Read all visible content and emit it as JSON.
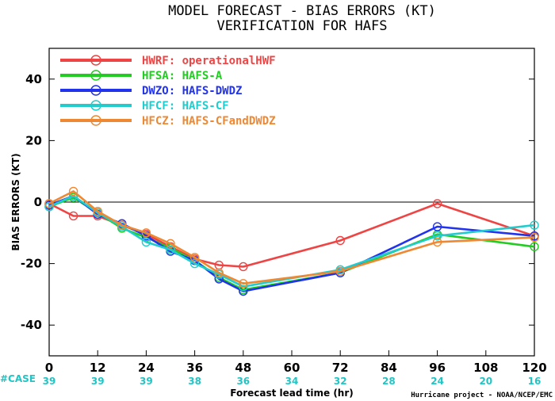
{
  "chart_data": {
    "type": "line",
    "title": "MODEL FORECAST - BIAS ERRORS (KT)",
    "subtitle": "VERIFICATION FOR HAFS",
    "xlabel": "Forecast lead time (hr)",
    "ylabel": "BIAS ERRORS (KT)",
    "xlim": [
      0,
      120
    ],
    "ylim": [
      -50,
      50
    ],
    "x_ticks": [
      "0",
      "12",
      "24",
      "36",
      "48",
      "60",
      "72",
      "84",
      "96",
      "108",
      "120"
    ],
    "y_ticks": [
      "40",
      "20",
      "0",
      "-20",
      "-40"
    ],
    "x_tick_values": [
      0,
      12,
      24,
      36,
      48,
      60,
      72,
      84,
      96,
      108,
      120
    ],
    "y_tick_values": [
      40,
      20,
      0,
      -20,
      -40
    ],
    "zero_line": true,
    "legend_position": "top-left",
    "case_label": "#CASE",
    "cases": [
      "39",
      "39",
      "39",
      "38",
      "36",
      "34",
      "32",
      "28",
      "24",
      "20",
      "16"
    ],
    "credit": "Hurricane project - NOAA/NCEP/EMC",
    "series": [
      {
        "name": "HWRF: operationalHWF",
        "color": "#ee4444",
        "x": [
          0,
          6,
          12,
          18,
          24,
          30,
          36,
          42,
          48,
          72,
          96,
          120
        ],
        "y": [
          -0.5,
          -4.5,
          -4.5,
          -7.5,
          -10.5,
          -14.5,
          -18.5,
          -20.5,
          -21,
          -12.5,
          -0.5,
          -11
        ]
      },
      {
        "name": "HFSA: HAFS-A",
        "color": "#22cc22",
        "x": [
          0,
          6,
          12,
          18,
          24,
          30,
          36,
          42,
          48,
          72,
          96,
          120
        ],
        "y": [
          -1.5,
          1.5,
          -3.5,
          -8.5,
          -11.5,
          -15,
          -19,
          -24.5,
          -28.5,
          -23,
          -10.5,
          -14.5
        ]
      },
      {
        "name": "DWZO: HAFS-DWDZ",
        "color": "#2233ee",
        "x": [
          0,
          6,
          12,
          18,
          24,
          30,
          36,
          42,
          48,
          72,
          96,
          120
        ],
        "y": [
          -1,
          2,
          -4,
          -7,
          -11,
          -16,
          -19,
          -25,
          -29,
          -23,
          -8,
          -11
        ]
      },
      {
        "name": "HFCF: HAFS-CF",
        "color": "#22cccc",
        "x": [
          0,
          6,
          12,
          18,
          24,
          30,
          36,
          42,
          48,
          72,
          96,
          120
        ],
        "y": [
          -1.5,
          2,
          -3.5,
          -8,
          -13,
          -15.5,
          -20,
          -23.5,
          -27.5,
          -22,
          -11,
          -7.5
        ]
      },
      {
        "name": "HFCZ: HAFS-CFandDWDZ",
        "color": "#ee8833",
        "x": [
          0,
          6,
          12,
          18,
          24,
          30,
          36,
          42,
          48,
          72,
          96,
          120
        ],
        "y": [
          -0.5,
          3.5,
          -3,
          -7.5,
          -10,
          -13.5,
          -18,
          -23,
          -26.5,
          -22.5,
          -13,
          -11.5
        ]
      }
    ]
  }
}
